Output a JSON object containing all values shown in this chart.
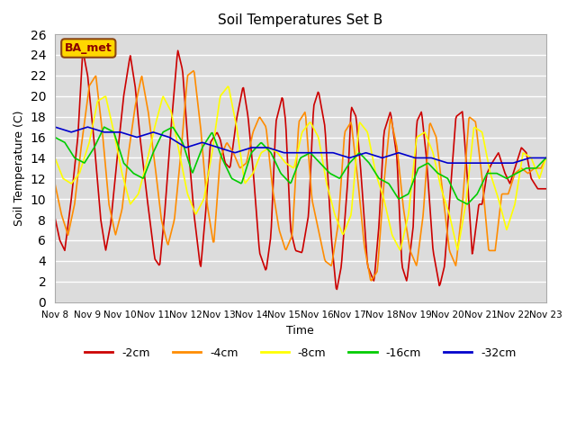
{
  "title": "Soil Temperatures Set B",
  "xlabel": "Time",
  "ylabel": "Soil Temperature (C)",
  "ylim": [
    0,
    26
  ],
  "yticks": [
    0,
    2,
    4,
    6,
    8,
    10,
    12,
    14,
    16,
    18,
    20,
    22,
    24,
    26
  ],
  "xtick_labels": [
    "Nov 8",
    "Nov 9",
    "Nov 10",
    "Nov 11",
    "Nov 12",
    "Nov 13",
    "Nov 14",
    "Nov 15",
    "Nov 16",
    "Nov 17",
    "Nov 18",
    "Nov 19",
    "Nov 20",
    "Nov 21",
    "Nov 22",
    "Nov 23"
  ],
  "label_box_text": "BA_met",
  "label_box_color": "#FFD700",
  "label_box_text_color": "#8B0000",
  "series": {
    "-2cm": {
      "color": "#CC0000",
      "x": [
        0.0,
        0.15,
        0.3,
        0.5,
        0.7,
        0.85,
        1.0,
        1.2,
        1.4,
        1.55,
        1.7,
        1.9,
        2.1,
        2.3,
        2.45,
        2.6,
        2.8,
        3.05,
        3.2,
        3.35,
        3.55,
        3.75,
        3.9,
        4.05,
        4.25,
        4.45,
        4.6,
        4.75,
        4.95,
        5.05,
        5.2,
        5.35,
        5.55,
        5.75,
        5.9,
        6.05,
        6.25,
        6.45,
        6.6,
        6.75,
        6.95,
        7.05,
        7.2,
        7.35,
        7.55,
        7.75,
        7.9,
        8.05,
        8.25,
        8.45,
        8.6,
        8.75,
        8.95,
        9.05,
        9.2,
        9.35,
        9.55,
        9.75,
        9.9,
        10.05,
        10.25,
        10.45,
        10.6,
        10.75,
        10.95,
        11.05,
        11.2,
        11.35,
        11.55,
        11.75,
        11.9,
        12.05,
        12.25,
        12.45,
        12.6,
        12.75,
        12.95,
        13.05,
        13.2,
        13.35,
        13.55,
        13.75,
        13.9,
        14.05,
        14.25,
        14.4,
        14.55,
        14.75,
        14.9,
        15.0
      ],
      "y": [
        8.2,
        6.0,
        5.0,
        10.0,
        16.0,
        24.5,
        22.0,
        15.5,
        8.0,
        5.0,
        7.5,
        14.0,
        20.0,
        24.0,
        21.0,
        16.0,
        10.5,
        4.2,
        3.5,
        8.5,
        17.0,
        24.5,
        22.5,
        16.0,
        8.5,
        3.2,
        8.5,
        15.5,
        16.5,
        15.8,
        13.5,
        13.0,
        17.8,
        21.0,
        18.0,
        13.0,
        4.8,
        3.0,
        6.5,
        17.5,
        20.0,
        17.5,
        7.0,
        5.0,
        4.8,
        8.5,
        19.0,
        20.5,
        17.0,
        6.0,
        1.0,
        3.5,
        12.0,
        19.0,
        18.0,
        12.5,
        3.5,
        2.0,
        7.5,
        16.5,
        18.5,
        14.0,
        3.5,
        2.0,
        7.5,
        17.5,
        18.5,
        14.0,
        5.0,
        1.5,
        3.5,
        9.5,
        18.0,
        18.5,
        12.0,
        4.5,
        9.5,
        9.5,
        12.5,
        13.5,
        14.5,
        12.5,
        11.5,
        13.0,
        15.0,
        14.5,
        12.0,
        11.0,
        11.0,
        11.0
      ]
    },
    "-4cm": {
      "color": "#FF8C00",
      "x": [
        0.0,
        0.2,
        0.4,
        0.6,
        0.8,
        1.05,
        1.25,
        1.45,
        1.65,
        1.85,
        2.05,
        2.25,
        2.45,
        2.65,
        2.85,
        3.05,
        3.25,
        3.45,
        3.65,
        3.85,
        4.05,
        4.25,
        4.45,
        4.65,
        4.85,
        5.05,
        5.25,
        5.45,
        5.65,
        5.85,
        6.05,
        6.25,
        6.45,
        6.65,
        6.85,
        7.05,
        7.25,
        7.45,
        7.65,
        7.85,
        8.05,
        8.25,
        8.45,
        8.65,
        8.85,
        9.05,
        9.25,
        9.45,
        9.65,
        9.85,
        10.05,
        10.25,
        10.45,
        10.65,
        10.85,
        11.05,
        11.25,
        11.45,
        11.65,
        11.85,
        12.05,
        12.25,
        12.45,
        12.65,
        12.85,
        13.05,
        13.25,
        13.45,
        13.65,
        13.85,
        14.05,
        14.25,
        14.45,
        14.65,
        14.85,
        15.0
      ],
      "y": [
        11.5,
        8.5,
        6.5,
        9.5,
        15.0,
        21.0,
        22.0,
        16.5,
        9.5,
        6.5,
        9.0,
        14.5,
        19.0,
        22.0,
        18.5,
        13.5,
        8.0,
        5.5,
        8.0,
        14.5,
        22.0,
        22.5,
        17.0,
        9.5,
        5.5,
        14.0,
        15.5,
        14.5,
        13.0,
        13.5,
        16.5,
        18.0,
        17.0,
        11.0,
        7.0,
        5.0,
        6.5,
        17.5,
        18.5,
        10.0,
        7.0,
        4.0,
        3.5,
        7.5,
        16.5,
        17.5,
        12.0,
        5.5,
        2.0,
        3.0,
        11.5,
        18.0,
        15.0,
        9.0,
        5.0,
        3.5,
        8.5,
        17.5,
        16.0,
        10.5,
        5.0,
        3.5,
        9.5,
        18.0,
        17.5,
        12.0,
        5.0,
        5.0,
        10.5,
        10.5,
        12.5,
        13.0,
        12.5,
        13.0,
        13.0,
        14.0
      ]
    },
    "-8cm": {
      "color": "#FFFF00",
      "x": [
        0.0,
        0.25,
        0.5,
        0.75,
        1.05,
        1.3,
        1.55,
        1.8,
        2.05,
        2.3,
        2.55,
        2.8,
        3.05,
        3.3,
        3.55,
        3.8,
        4.05,
        4.3,
        4.55,
        4.8,
        5.05,
        5.3,
        5.55,
        5.8,
        6.05,
        6.3,
        6.55,
        6.8,
        7.05,
        7.3,
        7.55,
        7.8,
        8.05,
        8.3,
        8.55,
        8.8,
        9.05,
        9.3,
        9.55,
        9.8,
        10.05,
        10.3,
        10.55,
        10.8,
        11.05,
        11.3,
        11.55,
        11.8,
        12.05,
        12.3,
        12.55,
        12.8,
        13.05,
        13.3,
        13.55,
        13.8,
        14.05,
        14.3,
        14.55,
        14.8,
        15.0
      ],
      "y": [
        14.0,
        12.0,
        11.5,
        12.5,
        15.5,
        19.5,
        20.0,
        16.5,
        12.5,
        9.5,
        10.5,
        13.5,
        17.0,
        20.0,
        18.5,
        14.5,
        10.5,
        8.5,
        10.0,
        14.5,
        20.0,
        21.0,
        17.0,
        11.5,
        12.5,
        14.5,
        15.0,
        14.5,
        13.5,
        13.0,
        16.5,
        17.5,
        16.0,
        11.5,
        8.5,
        6.5,
        8.5,
        17.5,
        16.5,
        12.5,
        10.0,
        6.5,
        5.0,
        8.5,
        16.0,
        16.5,
        14.5,
        11.0,
        8.5,
        5.0,
        9.5,
        17.0,
        16.5,
        12.5,
        10.0,
        7.0,
        9.5,
        14.5,
        14.0,
        12.0,
        14.0
      ]
    },
    "-16cm": {
      "color": "#00CC00",
      "x": [
        0.0,
        0.3,
        0.6,
        0.9,
        1.2,
        1.5,
        1.8,
        2.1,
        2.4,
        2.7,
        3.0,
        3.3,
        3.6,
        3.9,
        4.2,
        4.5,
        4.8,
        5.1,
        5.4,
        5.7,
        6.0,
        6.3,
        6.6,
        6.9,
        7.2,
        7.5,
        7.8,
        8.1,
        8.4,
        8.7,
        9.0,
        9.3,
        9.6,
        9.9,
        10.2,
        10.5,
        10.8,
        11.1,
        11.4,
        11.7,
        12.0,
        12.3,
        12.6,
        12.9,
        13.2,
        13.5,
        13.8,
        14.1,
        14.4,
        14.7,
        15.0
      ],
      "y": [
        16.0,
        15.5,
        14.0,
        13.5,
        15.0,
        17.0,
        16.5,
        13.5,
        12.5,
        12.0,
        14.5,
        16.5,
        17.0,
        15.5,
        12.5,
        15.0,
        16.5,
        14.0,
        12.0,
        11.5,
        14.5,
        15.5,
        14.5,
        12.5,
        11.5,
        14.0,
        14.5,
        13.5,
        12.5,
        12.0,
        13.5,
        14.5,
        13.5,
        12.0,
        11.5,
        10.0,
        10.5,
        13.0,
        13.5,
        12.5,
        12.0,
        10.0,
        9.5,
        10.5,
        12.5,
        12.5,
        12.0,
        12.5,
        13.0,
        13.0,
        14.0
      ]
    },
    "-32cm": {
      "color": "#0000CC",
      "x": [
        0.0,
        0.5,
        1.0,
        1.5,
        2.0,
        2.5,
        3.0,
        3.5,
        4.0,
        4.5,
        5.0,
        5.5,
        6.0,
        6.5,
        7.0,
        7.5,
        8.0,
        8.5,
        9.0,
        9.5,
        10.0,
        10.5,
        11.0,
        11.5,
        12.0,
        12.5,
        13.0,
        13.5,
        14.0,
        14.5,
        15.0
      ],
      "y": [
        17.0,
        16.5,
        17.0,
        16.5,
        16.5,
        16.0,
        16.5,
        16.0,
        15.0,
        15.5,
        15.0,
        14.5,
        15.0,
        15.0,
        14.5,
        14.5,
        14.5,
        14.5,
        14.0,
        14.5,
        14.0,
        14.5,
        14.0,
        14.0,
        13.5,
        13.5,
        13.5,
        13.5,
        13.5,
        14.0,
        14.0
      ]
    }
  }
}
